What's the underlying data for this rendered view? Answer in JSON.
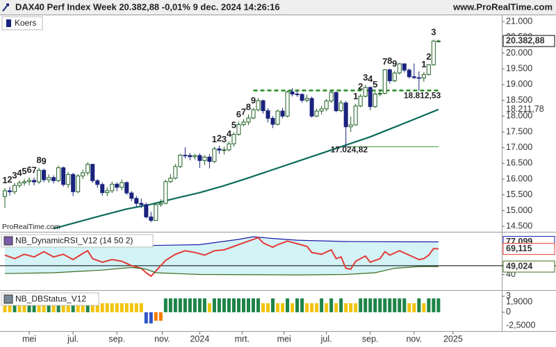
{
  "chart_data": [
    {
      "type": "candlestick",
      "title": "DAX40 Perf Index Week 20.382,88 -0,01% 9 dec. 2024 14:26:16",
      "source": "www.ProRealTime.com",
      "watermark": "ProRealTime.com",
      "legend": "Koers",
      "legend_color": "#1a237e",
      "colors": {
        "up": "#ffffff",
        "down": "#1a237e",
        "edge": "#1b5e20"
      },
      "open": [
        15450,
        15630,
        15600,
        15800,
        15880,
        15920,
        15960,
        15910,
        16280,
        15980,
        16050,
        15950,
        16360,
        15830,
        16150,
        15600,
        16100,
        16200,
        16470,
        15950,
        15830,
        15570,
        15630,
        15840,
        15740,
        15890,
        15560,
        15390,
        15230,
        15190,
        14800,
        14690,
        15190,
        15230,
        15920,
        16030,
        16400,
        16760,
        16750,
        16710,
        16750,
        16590,
        16700,
        16560,
        16960,
        16920,
        16930,
        17120,
        17420,
        17730,
        17810,
        17940,
        18200,
        18490,
        18170,
        17930,
        17740,
        18160,
        18000,
        18770,
        18700,
        18690,
        18500,
        18560,
        18000,
        18160,
        18230,
        18480,
        18750,
        18170,
        18420,
        17660,
        17720,
        18320,
        18630,
        18910,
        18300,
        18700,
        18720,
        19470,
        19120,
        19370,
        19660,
        19460,
        19250,
        19220,
        19210,
        19320,
        19630,
        20380
      ],
      "high": [
        15720,
        15750,
        15880,
        15960,
        16010,
        16060,
        16050,
        16360,
        16330,
        16150,
        16120,
        16430,
        16400,
        16230,
        16200,
        16160,
        16300,
        16530,
        16480,
        16000,
        15900,
        15740,
        15920,
        15900,
        15990,
        15930,
        15620,
        15470,
        15380,
        15250,
        14960,
        15240,
        15360,
        15980,
        16150,
        16480,
        16800,
        17010,
        16830,
        16800,
        16820,
        16760,
        16790,
        17030,
        17060,
        17030,
        17200,
        17480,
        17820,
        17900,
        18050,
        18260,
        18570,
        18520,
        18250,
        18000,
        18200,
        18260,
        18810,
        18890,
        18810,
        18720,
        18680,
        18620,
        18240,
        18330,
        18550,
        18840,
        18780,
        18510,
        18480,
        17990,
        18390,
        18700,
        18990,
        18940,
        18770,
        18840,
        19490,
        19510,
        19430,
        19690,
        19670,
        19510,
        19670,
        19420,
        19400,
        19650,
        20430,
        20420
      ],
      "low": [
        15080,
        15480,
        15520,
        15720,
        15790,
        15810,
        15800,
        15850,
        15900,
        15880,
        15860,
        15900,
        15760,
        15720,
        15460,
        15550,
        16000,
        16120,
        15880,
        15720,
        15470,
        15460,
        15560,
        15620,
        15650,
        15500,
        15300,
        15110,
        15080,
        14750,
        14630,
        14680,
        15120,
        15200,
        15880,
        15990,
        16350,
        16660,
        16600,
        16620,
        16350,
        16450,
        16340,
        16500,
        16800,
        16780,
        16880,
        17030,
        17380,
        17670,
        17720,
        17900,
        18150,
        18080,
        17800,
        17620,
        17700,
        17930,
        17960,
        18620,
        18610,
        18430,
        18440,
        17950,
        17970,
        18050,
        18150,
        18420,
        18120,
        18130,
        17024.82,
        17500,
        17700,
        18280,
        18590,
        18190,
        18260,
        18630,
        18690,
        19030,
        19080,
        19320,
        19380,
        19190,
        19180,
        18810,
        19090,
        19290,
        19600,
        20340
      ],
      "close": [
        15630,
        15600,
        15800,
        15880,
        15920,
        15960,
        15910,
        16280,
        15980,
        16050,
        15950,
        16360,
        15830,
        16150,
        15600,
        16100,
        16200,
        16470,
        15950,
        15830,
        15570,
        15630,
        15840,
        15740,
        15890,
        15560,
        15390,
        15230,
        15190,
        14800,
        14690,
        15190,
        15230,
        15920,
        16030,
        16400,
        16760,
        16750,
        16710,
        16750,
        16590,
        16700,
        16560,
        16960,
        16920,
        16930,
        17120,
        17420,
        17730,
        17810,
        17940,
        18200,
        18490,
        18170,
        17930,
        17740,
        18160,
        18000,
        18770,
        18700,
        18690,
        18500,
        18560,
        18000,
        18160,
        18230,
        18480,
        18750,
        18170,
        18420,
        17660,
        17720,
        18320,
        18630,
        18910,
        18300,
        18700,
        18720,
        19470,
        19120,
        19370,
        19660,
        19460,
        19250,
        19220,
        19210,
        19320,
        19630,
        20380,
        20382.88
      ],
      "last_label": "20.382,88",
      "ma": {
        "color": "#0b6b5a",
        "x": [
          10,
          15,
          20,
          25,
          30,
          35,
          40,
          45,
          50,
          55,
          60,
          65,
          70,
          75,
          80,
          85,
          89
        ],
        "values": [
          14430,
          14640,
          14850,
          15050,
          15200,
          15390,
          15570,
          15790,
          16040,
          16300,
          16560,
          16820,
          17080,
          17340,
          17650,
          17960,
          18211.78
        ],
        "last_label": "18.211,78"
      },
      "levels": [
        {
          "value": 18812.53,
          "label": "18.812,53",
          "from": 51,
          "to": 89,
          "color": "#1e8c1e",
          "dash": true
        },
        {
          "value": 17024.82,
          "label": "17.024,82",
          "from": 70,
          "to": 89,
          "color": "#3a9d3a",
          "dash": false
        }
      ],
      "counts": {
        "color": "#1010d0",
        "index": [
          0,
          1,
          2,
          3,
          4,
          5,
          6,
          7,
          8,
          43,
          44,
          45,
          46,
          47,
          48,
          49,
          50,
          51,
          72,
          73,
          74,
          75,
          76,
          78,
          79,
          80,
          86,
          87,
          88
        ],
        "labels": [
          1,
          2,
          3,
          4,
          5,
          6,
          7,
          8,
          9,
          1,
          2,
          3,
          4,
          5,
          6,
          7,
          8,
          9,
          1,
          2,
          3,
          4,
          5,
          7,
          8,
          9,
          1,
          2,
          3
        ]
      },
      "xlim": [
        -1,
        102
      ],
      "xticks": [
        {
          "value": 5,
          "label": "mei"
        },
        {
          "value": 14,
          "label": "jul."
        },
        {
          "value": 23,
          "label": "sep."
        },
        {
          "value": 32.3,
          "label": "nov."
        },
        {
          "value": 40,
          "label": "2024"
        },
        {
          "value": 48.7,
          "label": "mrt."
        },
        {
          "value": 57.3,
          "label": "mei"
        },
        {
          "value": 66,
          "label": "jul."
        },
        {
          "value": 75,
          "label": "sep."
        },
        {
          "value": 84,
          "label": "nov."
        },
        {
          "value": 92,
          "label": "2025"
        }
      ],
      "ylim": [
        14350,
        21200
      ],
      "yticks": [
        {
          "value": 14500,
          "label": "14.500"
        },
        {
          "value": 15000,
          "label": "15.000"
        },
        {
          "value": 15500,
          "label": "15.500"
        },
        {
          "value": 16000,
          "label": "16.000"
        },
        {
          "value": 16500,
          "label": "16.500"
        },
        {
          "value": 17000,
          "label": "17.000"
        },
        {
          "value": 17500,
          "label": "17.500"
        },
        {
          "value": 18000,
          "label": "18.000"
        },
        {
          "value": 18500,
          "label": "18.500"
        },
        {
          "value": 19000,
          "label": "19.000"
        },
        {
          "value": 19500,
          "label": "19.500"
        },
        {
          "value": 20000,
          "label": "20.000"
        },
        {
          "value": 20500,
          "label": "20.500"
        },
        {
          "value": 21000,
          "label": "21.000"
        }
      ]
    },
    {
      "type": "line",
      "title": "NB_DynamicRSI_V12 (14 50 2)",
      "fill": "#d3f3f6",
      "reference": 50,
      "series": [
        {
          "color": "#1a1aa6",
          "x": [
            0,
            10,
            20,
            30,
            40,
            48,
            51,
            55,
            60,
            70,
            80,
            89
          ],
          "values": [
            76,
            75,
            74,
            73,
            74,
            80,
            83,
            81,
            79,
            77.5,
            77.2,
            77.099
          ],
          "last_label": "77,099"
        },
        {
          "color": "#e53935",
          "x": [
            0,
            2,
            4,
            6,
            8,
            10,
            12,
            14,
            16,
            17,
            18,
            20,
            22,
            24,
            26,
            28,
            29,
            30,
            31,
            33,
            35,
            37,
            39,
            41,
            43,
            45,
            47,
            49,
            51,
            52,
            53,
            55,
            56,
            58,
            60,
            62,
            63,
            65,
            67,
            68,
            69,
            70,
            71,
            72,
            74,
            75,
            77,
            78,
            79,
            81,
            83,
            85,
            86,
            87,
            88,
            89
          ],
          "values": [
            62,
            58,
            63,
            60,
            66,
            60,
            63,
            57,
            64,
            67,
            58,
            54,
            57,
            55,
            50,
            47,
            42,
            38,
            44,
            56,
            63,
            67,
            65,
            62,
            67,
            68,
            72,
            76,
            80,
            82,
            76,
            71,
            74,
            78,
            75,
            72,
            65,
            63,
            68,
            58,
            60,
            47,
            46,
            55,
            61,
            54,
            58,
            66,
            62,
            67,
            62,
            57,
            58,
            62,
            69.5,
            69.115
          ],
          "last_label": "69,115"
        },
        {
          "color": "#3d6b1f",
          "x": [
            0,
            10,
            20,
            26,
            29,
            31,
            40,
            60,
            70,
            76,
            80,
            85,
            89
          ],
          "values": [
            41,
            42,
            45,
            48,
            46,
            42,
            40,
            39.5,
            40,
            42,
            47,
            49,
            49.024
          ],
          "last_label": "49,024"
        }
      ],
      "xlim": [
        -1,
        102
      ],
      "ylim": [
        23,
        87
      ],
      "yticks": [
        40
      ]
    },
    {
      "type": "bar",
      "title": "NB_DBStatus_V12",
      "values": [
        1.7,
        1.7,
        2.6,
        1.7,
        1.7,
        2.6,
        2.6,
        1.7,
        1.7,
        2.6,
        1.7,
        2.6,
        1.7,
        1.7,
        2.6,
        1.7,
        1.7,
        2.6,
        1.7,
        1.7,
        1.7,
        1.7,
        1.7,
        1.7,
        1.7,
        1.7,
        1.7,
        1.7,
        1.7,
        -2.1,
        -2.1,
        -1.6,
        -1.6,
        2.6,
        2.6,
        2.6,
        2.6,
        2.6,
        2.6,
        2.6,
        2.6,
        2.6,
        1.7,
        2.6,
        2.6,
        2.6,
        2.6,
        2.6,
        2.6,
        2.6,
        2.6,
        2.6,
        2.6,
        1.7,
        1.7,
        2.6,
        1.7,
        1.7,
        2.6,
        1.7,
        2.6,
        2.6,
        1.7,
        1.7,
        1.7,
        2.6,
        1.7,
        2.6,
        1.7,
        2.6,
        1.7,
        1.7,
        1.7,
        2.6,
        2.6,
        2.6,
        2.6,
        2.6,
        2.6,
        2.6,
        2.6,
        2.6,
        2.6,
        1.7,
        1.7,
        2.6,
        1.7,
        2.6,
        2.6,
        2.6
      ],
      "states": [
        "y",
        "y",
        "g",
        "y",
        "y",
        "g",
        "g",
        "y",
        "y",
        "g",
        "y",
        "g",
        "y",
        "y",
        "g",
        "y",
        "y",
        "g",
        "y",
        "y",
        "y",
        "y",
        "y",
        "y",
        "y",
        "y",
        "y",
        "y",
        "y",
        "b",
        "b",
        "o",
        "o",
        "g",
        "g",
        "g",
        "g",
        "g",
        "g",
        "g",
        "g",
        "g",
        "y",
        "g",
        "g",
        "g",
        "g",
        "g",
        "g",
        "g",
        "g",
        "g",
        "g",
        "y",
        "y",
        "g",
        "y",
        "y",
        "g",
        "y",
        "g",
        "g",
        "y",
        "y",
        "y",
        "g",
        "y",
        "g",
        "y",
        "g",
        "y",
        "y",
        "y",
        "g",
        "g",
        "g",
        "g",
        "g",
        "g",
        "g",
        "g",
        "g",
        "g",
        "y",
        "y",
        "g",
        "y",
        "g",
        "g",
        "g"
      ],
      "palette": {
        "g": "#1e8449",
        "y": "#f1c40f",
        "b": "#2f56c8",
        "o": "#f57c00"
      },
      "xlim": [
        -1,
        102
      ],
      "ylim": [
        -3.4,
        3.9
      ],
      "yticks": [
        3,
        0
      ],
      "levels": [
        {
          "value": 1.9,
          "label": "1,9000"
        },
        {
          "value": -2.5,
          "label": "-2,5000"
        }
      ]
    }
  ]
}
